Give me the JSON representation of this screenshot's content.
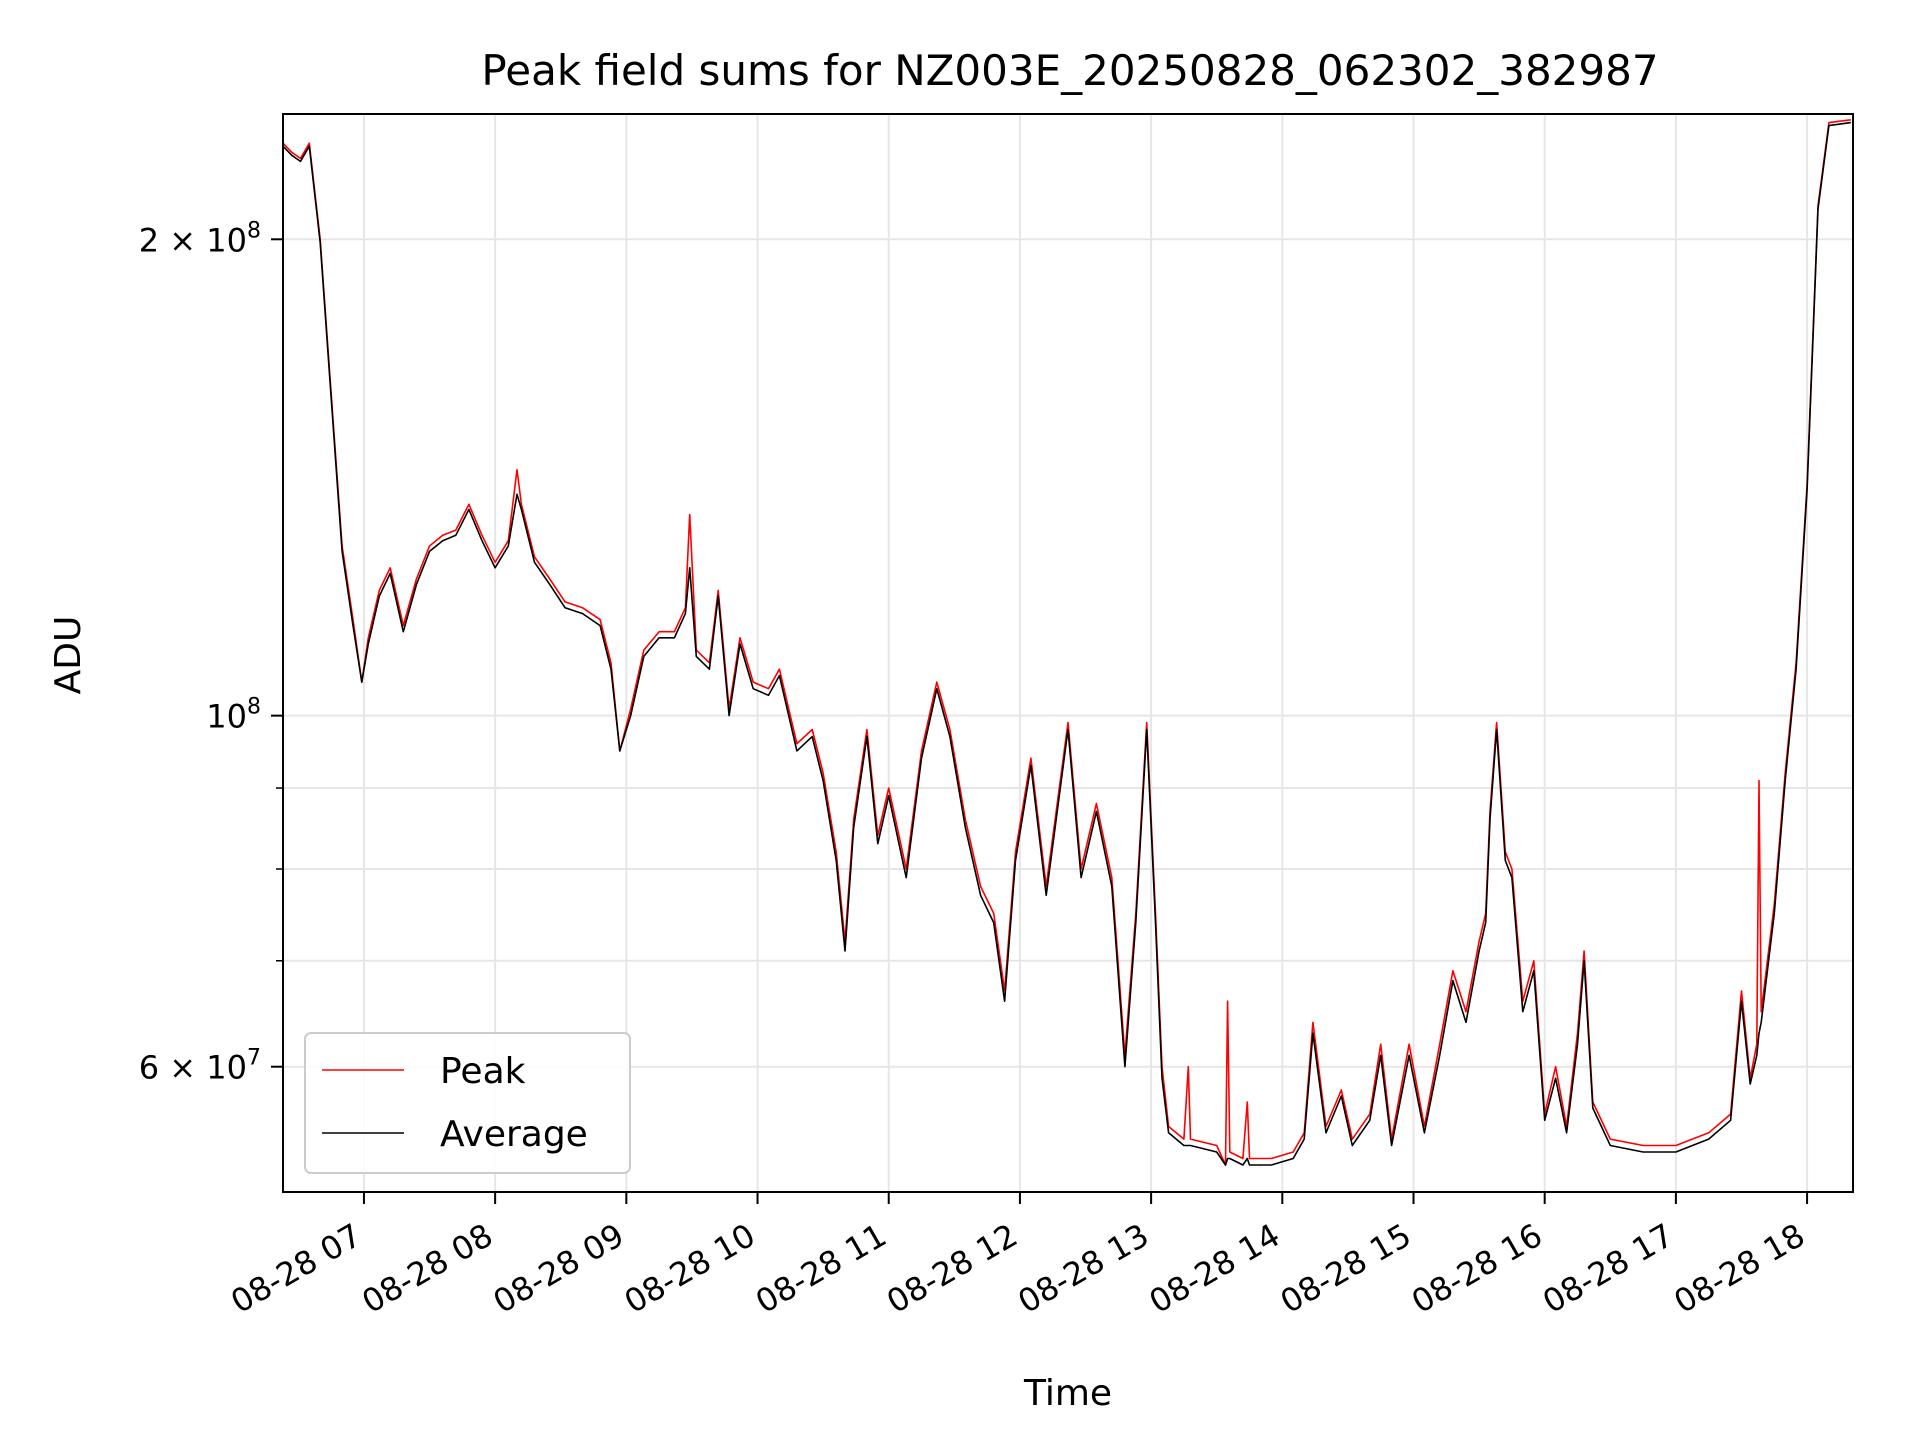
{
  "chart_data": {
    "type": "line",
    "title": "Peak field sums for NZ003E_20250828_062302_382987",
    "xlabel": "Time",
    "ylabel": "ADU",
    "yscale": "log",
    "ylim": [
      50000000,
      240000000
    ],
    "xlim_hours": [
      6.383,
      18.35
    ],
    "grid": true,
    "legend_position": "lower-left",
    "x_ticks": [
      "08-28 07",
      "08-28 08",
      "08-28 09",
      "08-28 10",
      "08-28 11",
      "08-28 12",
      "08-28 13",
      "08-28 14",
      "08-28 15",
      "08-28 16",
      "08-28 17",
      "08-28 18"
    ],
    "y_ticks": [
      {
        "value": 200000000,
        "base": "2 × 10",
        "exp": "8"
      },
      {
        "value": 100000000,
        "base": "10",
        "exp": "8"
      },
      {
        "value": 60000000,
        "base": "6 × 10",
        "exp": "7"
      }
    ],
    "y_minor_ticks": [
      70000000,
      80000000,
      90000000
    ],
    "series": [
      {
        "name": "Peak",
        "color": "#ff0000",
        "points": [
          [
            "06:23",
            230000000.0
          ],
          [
            "06:27",
            227000000.0
          ],
          [
            "06:31",
            225000000.0
          ],
          [
            "06:35",
            230000000.0
          ],
          [
            "06:40",
            200000000.0
          ],
          [
            "06:45",
            160000000.0
          ],
          [
            "06:50",
            128000000.0
          ],
          [
            "06:55",
            115000000.0
          ],
          [
            "06:59",
            105000000.0
          ],
          [
            "07:02",
            112000000.0
          ],
          [
            "07:07",
            120000000.0
          ],
          [
            "07:12",
            124000000.0
          ],
          [
            "07:18",
            114000000.0
          ],
          [
            "07:24",
            122000000.0
          ],
          [
            "07:30",
            128000000.0
          ],
          [
            "07:36",
            130000000.0
          ],
          [
            "07:42",
            131000000.0
          ],
          [
            "07:48",
            136000000.0
          ],
          [
            "07:54",
            130000000.0
          ],
          [
            "08:00",
            125000000.0
          ],
          [
            "08:06",
            129000000.0
          ],
          [
            "08:10",
            143000000.0
          ],
          [
            "08:12",
            136000000.0
          ],
          [
            "08:18",
            126000000.0
          ],
          [
            "08:25",
            122000000.0
          ],
          [
            "08:32",
            118000000.0
          ],
          [
            "08:40",
            117000000.0
          ],
          [
            "08:48",
            115000000.0
          ],
          [
            "08:53",
            108000000.0
          ],
          [
            "08:57",
            95000000.0
          ],
          [
            "09:02",
            101000000.0
          ],
          [
            "09:08",
            110000000.0
          ],
          [
            "09:15",
            113000000.0
          ],
          [
            "09:22",
            113000000.0
          ],
          [
            "09:27",
            117000000.0
          ],
          [
            "09:29",
            134000000.0
          ],
          [
            "09:32",
            110000000.0
          ],
          [
            "09:38",
            108000000.0
          ],
          [
            "09:42",
            120000000.0
          ],
          [
            "09:47",
            101000000.0
          ],
          [
            "09:52",
            112000000.0
          ],
          [
            "09:58",
            105000000.0
          ],
          [
            "10:05",
            104000000.0
          ],
          [
            "10:10",
            107000000.0
          ],
          [
            "10:18",
            96000000.0
          ],
          [
            "10:25",
            98000000.0
          ],
          [
            "10:30",
            92000000.0
          ],
          [
            "10:36",
            82000000.0
          ],
          [
            "10:40",
            72000000.0
          ],
          [
            "10:44",
            86000000.0
          ],
          [
            "10:50",
            98000000.0
          ],
          [
            "10:55",
            84000000.0
          ],
          [
            "11:00",
            90000000.0
          ],
          [
            "11:08",
            80000000.0
          ],
          [
            "11:15",
            95000000.0
          ],
          [
            "11:22",
            105000000.0
          ],
          [
            "11:28",
            98000000.0
          ],
          [
            "11:35",
            86000000.0
          ],
          [
            "11:42",
            78000000.0
          ],
          [
            "11:48",
            75000000.0
          ],
          [
            "11:53",
            67000000.0
          ],
          [
            "11:58",
            82000000.0
          ],
          [
            "12:05",
            94000000.0
          ],
          [
            "12:12",
            78000000.0
          ],
          [
            "12:18",
            90000000.0
          ],
          [
            "12:22",
            99000000.0
          ],
          [
            "12:28",
            80000000.0
          ],
          [
            "12:35",
            88000000.0
          ],
          [
            "12:42",
            79000000.0
          ],
          [
            "12:48",
            61000000.0
          ],
          [
            "12:53",
            75000000.0
          ],
          [
            "12:58",
            99000000.0
          ],
          [
            "13:02",
            75000000.0
          ],
          [
            "13:05",
            60000000.0
          ],
          [
            "13:08",
            55000000.0
          ],
          [
            "13:15",
            54000000.0
          ],
          [
            "13:17",
            60000000.0
          ],
          [
            "13:18",
            54000000.0
          ],
          [
            "13:30",
            53500000.0
          ],
          [
            "13:34",
            52000000.0
          ],
          [
            "13:35",
            66000000.0
          ],
          [
            "13:36",
            53000000.0
          ],
          [
            "13:42",
            52500000.0
          ],
          [
            "13:44",
            57000000.0
          ],
          [
            "13:45",
            52500000.0
          ],
          [
            "13:55",
            52500000.0
          ],
          [
            "14:05",
            53000000.0
          ],
          [
            "14:10",
            54500000.0
          ],
          [
            "14:14",
            64000000.0
          ],
          [
            "14:20",
            55000000.0
          ],
          [
            "14:27",
            58000000.0
          ],
          [
            "14:32",
            54000000.0
          ],
          [
            "14:40",
            56000000.0
          ],
          [
            "14:45",
            62000000.0
          ],
          [
            "14:50",
            54000000.0
          ],
          [
            "14:58",
            62000000.0
          ],
          [
            "15:05",
            55000000.0
          ],
          [
            "15:12",
            62000000.0
          ],
          [
            "15:18",
            69000000.0
          ],
          [
            "15:24",
            65000000.0
          ],
          [
            "15:30",
            72000000.0
          ],
          [
            "15:33",
            75000000.0
          ],
          [
            "15:35",
            87000000.0
          ],
          [
            "15:38",
            99000000.0
          ],
          [
            "15:42",
            82000000.0
          ],
          [
            "15:45",
            80000000.0
          ],
          [
            "15:50",
            66000000.0
          ],
          [
            "15:55",
            70000000.0
          ],
          [
            "16:00",
            56000000.0
          ],
          [
            "16:05",
            60000000.0
          ],
          [
            "16:10",
            55000000.0
          ],
          [
            "16:15",
            63000000.0
          ],
          [
            "16:18",
            71000000.0
          ],
          [
            "16:22",
            57000000.0
          ],
          [
            "16:30",
            54000000.0
          ],
          [
            "16:45",
            53500000.0
          ],
          [
            "17:00",
            53500000.0
          ],
          [
            "17:15",
            54500000.0
          ],
          [
            "17:25",
            56000000.0
          ],
          [
            "17:30",
            67000000.0
          ],
          [
            "17:34",
            59000000.0
          ],
          [
            "17:37",
            62000000.0
          ],
          [
            "17:38",
            91000000.0
          ],
          [
            "17:39",
            65000000.0
          ],
          [
            "17:45",
            76000000.0
          ],
          [
            "17:50",
            92000000.0
          ],
          [
            "17:55",
            108000000.0
          ],
          [
            "18:00",
            140000000.0
          ],
          [
            "18:05",
            210000000.0
          ],
          [
            "18:10",
            237000000.0
          ],
          [
            "18:20",
            238000000.0
          ]
        ]
      },
      {
        "name": "Average",
        "color": "#000000",
        "points": [
          [
            "06:23",
            229000000.0
          ],
          [
            "06:27",
            226000000.0
          ],
          [
            "06:31",
            224000000.0
          ],
          [
            "06:35",
            229000000.0
          ],
          [
            "06:40",
            199000000.0
          ],
          [
            "06:45",
            159000000.0
          ],
          [
            "06:50",
            127000000.0
          ],
          [
            "06:55",
            114000000.0
          ],
          [
            "06:59",
            105000000.0
          ],
          [
            "07:02",
            111000000.0
          ],
          [
            "07:07",
            119000000.0
          ],
          [
            "07:12",
            123000000.0
          ],
          [
            "07:18",
            113000000.0
          ],
          [
            "07:24",
            121000000.0
          ],
          [
            "07:30",
            127000000.0
          ],
          [
            "07:36",
            129000000.0
          ],
          [
            "07:42",
            130000000.0
          ],
          [
            "07:48",
            135000000.0
          ],
          [
            "07:54",
            129000000.0
          ],
          [
            "08:00",
            124000000.0
          ],
          [
            "08:06",
            128000000.0
          ],
          [
            "08:10",
            138000000.0
          ],
          [
            "08:12",
            135000000.0
          ],
          [
            "08:18",
            125000000.0
          ],
          [
            "08:25",
            121000000.0
          ],
          [
            "08:32",
            117000000.0
          ],
          [
            "08:40",
            116000000.0
          ],
          [
            "08:48",
            114000000.0
          ],
          [
            "08:53",
            107000000.0
          ],
          [
            "08:57",
            95000000.0
          ],
          [
            "09:02",
            100000000.0
          ],
          [
            "09:08",
            109000000.0
          ],
          [
            "09:15",
            112000000.0
          ],
          [
            "09:22",
            112000000.0
          ],
          [
            "09:27",
            116000000.0
          ],
          [
            "09:29",
            124000000.0
          ],
          [
            "09:32",
            109000000.0
          ],
          [
            "09:38",
            107000000.0
          ],
          [
            "09:42",
            119000000.0
          ],
          [
            "09:47",
            100000000.0
          ],
          [
            "09:52",
            111000000.0
          ],
          [
            "09:58",
            104000000.0
          ],
          [
            "10:05",
            103000000.0
          ],
          [
            "10:10",
            106000000.0
          ],
          [
            "10:18",
            95000000.0
          ],
          [
            "10:25",
            97000000.0
          ],
          [
            "10:30",
            91000000.0
          ],
          [
            "10:36",
            81000000.0
          ],
          [
            "10:40",
            71000000.0
          ],
          [
            "10:44",
            85000000.0
          ],
          [
            "10:50",
            97000000.0
          ],
          [
            "10:55",
            83000000.0
          ],
          [
            "11:00",
            89000000.0
          ],
          [
            "11:08",
            79000000.0
          ],
          [
            "11:15",
            94000000.0
          ],
          [
            "11:22",
            104000000.0
          ],
          [
            "11:28",
            97000000.0
          ],
          [
            "11:35",
            85000000.0
          ],
          [
            "11:42",
            77000000.0
          ],
          [
            "11:48",
            74000000.0
          ],
          [
            "11:53",
            66000000.0
          ],
          [
            "11:58",
            81000000.0
          ],
          [
            "12:05",
            93000000.0
          ],
          [
            "12:12",
            77000000.0
          ],
          [
            "12:18",
            89000000.0
          ],
          [
            "12:22",
            98000000.0
          ],
          [
            "12:28",
            79000000.0
          ],
          [
            "12:35",
            87000000.0
          ],
          [
            "12:42",
            78000000.0
          ],
          [
            "12:48",
            60000000.0
          ],
          [
            "12:53",
            74000000.0
          ],
          [
            "12:58",
            98000000.0
          ],
          [
            "13:02",
            74000000.0
          ],
          [
            "13:05",
            59000000.0
          ],
          [
            "13:08",
            54500000.0
          ],
          [
            "13:15",
            53500000.0
          ],
          [
            "13:17",
            53500000.0
          ],
          [
            "13:18",
            53500000.0
          ],
          [
            "13:30",
            53000000.0
          ],
          [
            "13:34",
            52000000.0
          ],
          [
            "13:35",
            52500000.0
          ],
          [
            "13:36",
            52500000.0
          ],
          [
            "13:42",
            52000000.0
          ],
          [
            "13:44",
            52500000.0
          ],
          [
            "13:45",
            52000000.0
          ],
          [
            "13:55",
            52000000.0
          ],
          [
            "14:05",
            52500000.0
          ],
          [
            "14:10",
            54000000.0
          ],
          [
            "14:14",
            63000000.0
          ],
          [
            "14:20",
            54500000.0
          ],
          [
            "14:27",
            57500000.0
          ],
          [
            "14:32",
            53500000.0
          ],
          [
            "14:40",
            55500000.0
          ],
          [
            "14:45",
            61000000.0
          ],
          [
            "14:50",
            53500000.0
          ],
          [
            "14:58",
            61000000.0
          ],
          [
            "15:05",
            54500000.0
          ],
          [
            "15:12",
            61000000.0
          ],
          [
            "15:18",
            68000000.0
          ],
          [
            "15:24",
            64000000.0
          ],
          [
            "15:30",
            71000000.0
          ],
          [
            "15:33",
            74000000.0
          ],
          [
            "15:35",
            86000000.0
          ],
          [
            "15:38",
            98000000.0
          ],
          [
            "15:42",
            81000000.0
          ],
          [
            "15:45",
            79000000.0
          ],
          [
            "15:50",
            65000000.0
          ],
          [
            "15:55",
            69000000.0
          ],
          [
            "16:00",
            55500000.0
          ],
          [
            "16:05",
            59000000.0
          ],
          [
            "16:10",
            54500000.0
          ],
          [
            "16:15",
            62000000.0
          ],
          [
            "16:18",
            70000000.0
          ],
          [
            "16:22",
            56500000.0
          ],
          [
            "16:30",
            53500000.0
          ],
          [
            "16:45",
            53000000.0
          ],
          [
            "17:00",
            53000000.0
          ],
          [
            "17:15",
            54000000.0
          ],
          [
            "17:25",
            55500000.0
          ],
          [
            "17:30",
            66000000.0
          ],
          [
            "17:34",
            58500000.0
          ],
          [
            "17:37",
            61000000.0
          ],
          [
            "17:38",
            63000000.0
          ],
          [
            "17:39",
            64000000.0
          ],
          [
            "17:45",
            75000000.0
          ],
          [
            "17:50",
            91000000.0
          ],
          [
            "17:55",
            107000000.0
          ],
          [
            "18:00",
            139000000.0
          ],
          [
            "18:05",
            209000000.0
          ],
          [
            "18:10",
            236000000.0
          ],
          [
            "18:20",
            237000000.0
          ]
        ]
      }
    ]
  }
}
